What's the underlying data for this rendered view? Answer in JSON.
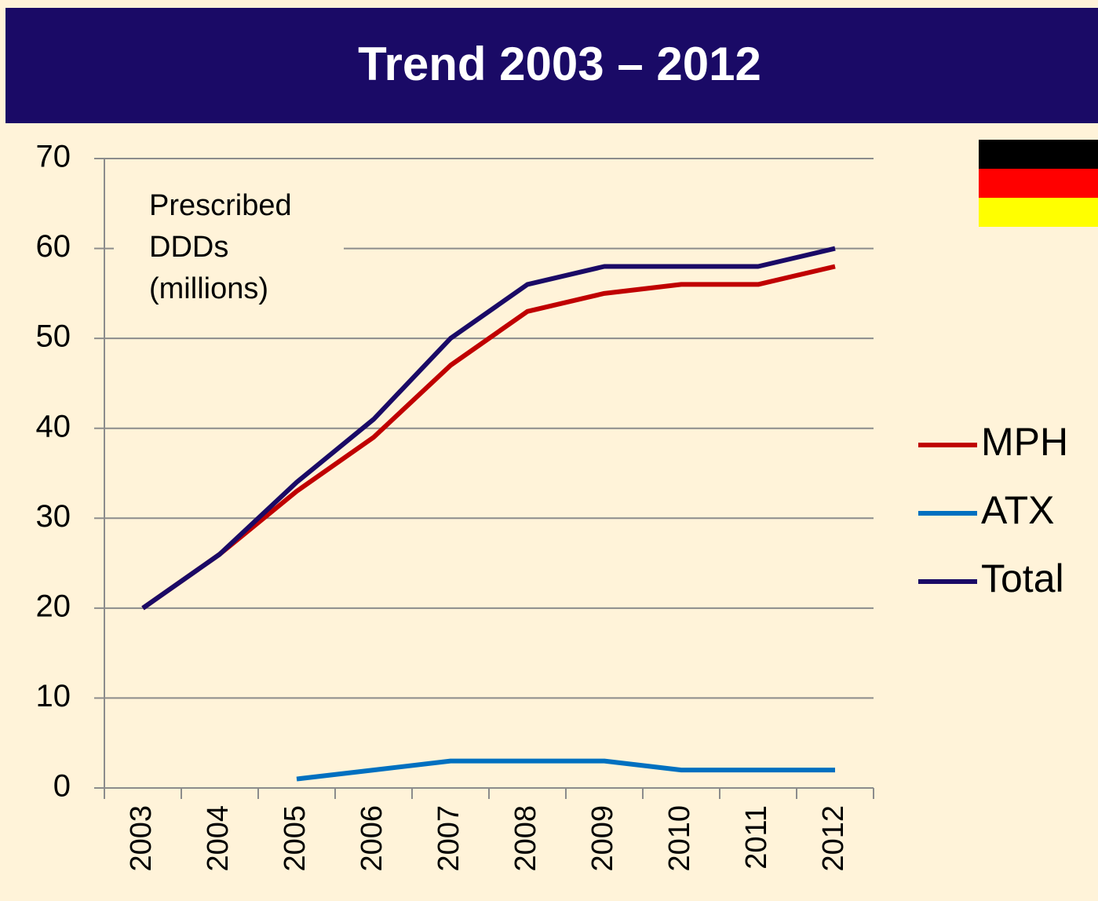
{
  "chart_data": {
    "type": "line",
    "title": "Trend 2003 – 2012",
    "annotation": [
      "Prescribed",
      "DDDs",
      "(millions)"
    ],
    "categories": [
      "2003",
      "2004",
      "2005",
      "2006",
      "2007",
      "2008",
      "2009",
      "2010",
      "2011",
      "2012"
    ],
    "series": [
      {
        "name": "MPH",
        "color": "#c00000",
        "values": [
          20,
          26,
          33,
          39,
          47,
          53,
          55,
          56,
          56,
          58
        ]
      },
      {
        "name": "ATX",
        "color": "#0070c0",
        "values": [
          null,
          null,
          1,
          2,
          3,
          3,
          3,
          2,
          2,
          2
        ]
      },
      {
        "name": "Total",
        "color": "#1a0a66",
        "values": [
          20,
          26,
          34,
          41,
          50,
          56,
          58,
          58,
          58,
          60
        ]
      }
    ],
    "ylim": [
      0,
      70
    ],
    "yticks": [
      0,
      10,
      20,
      30,
      40,
      50,
      60,
      70
    ],
    "grid": true,
    "legend": "right"
  }
}
